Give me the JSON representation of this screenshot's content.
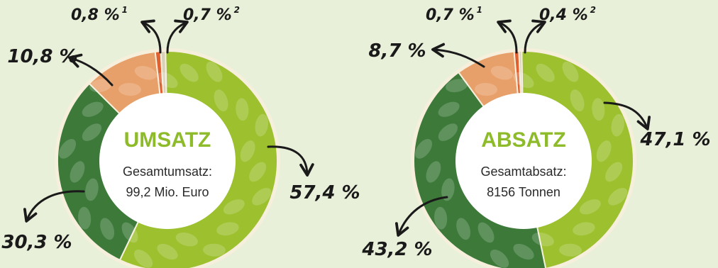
{
  "chart_data": [
    {
      "type": "pie",
      "title": "UMSATZ",
      "subtitle_line1": "Gesamtumsatz:",
      "subtitle_line2": "99,2 Mio. Euro",
      "slices": [
        {
          "label": "57,4 %",
          "value": 57.4,
          "color": "#9cc02e"
        },
        {
          "label": "30,3 %",
          "value": 30.3,
          "color": "#3d7a3a"
        },
        {
          "label": "10,8 %",
          "value": 10.8,
          "color": "#e8a06a"
        },
        {
          "label": "0,8 %",
          "footnote": "1",
          "value": 0.8,
          "color": "#e06030"
        },
        {
          "label": "0,7 %",
          "footnote": "2",
          "value": 0.7,
          "color": "#d8d0b8"
        }
      ]
    },
    {
      "type": "pie",
      "title": "ABSATZ",
      "subtitle_line1": "Gesamtabsatz:",
      "subtitle_line2": "8156 Tonnen",
      "slices": [
        {
          "label": "47,1 %",
          "value": 47.1,
          "color": "#9cc02e"
        },
        {
          "label": "43,2 %",
          "value": 43.2,
          "color": "#3d7a3a"
        },
        {
          "label": "8,7 %",
          "value": 8.7,
          "color": "#e8a06a"
        },
        {
          "label": "0,7 %",
          "footnote": "1",
          "value": 0.7,
          "color": "#e06030"
        },
        {
          "label": "0,4 %",
          "footnote": "2",
          "value": 0.4,
          "color": "#d8d0b8"
        }
      ]
    }
  ]
}
